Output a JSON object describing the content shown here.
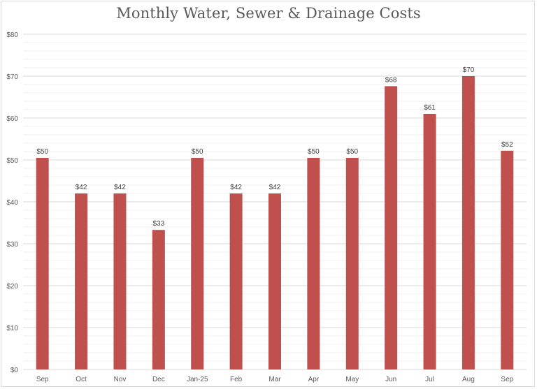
{
  "chart_data": {
    "type": "bar",
    "title": "Monthly Water, Sewer & Drainage Costs",
    "xlabel": "",
    "ylabel": "",
    "categories": [
      "Sep",
      "Oct",
      "Nov",
      "Dec",
      "Jan-25",
      "Feb",
      "Mar",
      "Apr",
      "May",
      "Jun",
      "Jul",
      "Aug",
      "Sep"
    ],
    "values": [
      50.5,
      42,
      42,
      33.3,
      50.5,
      42,
      42,
      50.5,
      50.5,
      67.6,
      61,
      70,
      52.2
    ],
    "data_labels": [
      "$50",
      "$42",
      "$42",
      "$33",
      "$50",
      "$42",
      "$42",
      "$50",
      "$50",
      "$68",
      "$61",
      "$70",
      "$52"
    ],
    "ylim": [
      0,
      80
    ],
    "yticks": [
      0,
      10,
      20,
      30,
      40,
      50,
      60,
      70,
      80
    ],
    "ytick_labels": [
      "$0",
      "$10",
      "$20",
      "$30",
      "$40",
      "$50",
      "$60",
      "$70",
      "$80"
    ],
    "minor_grid_step": 2,
    "grid": true,
    "legend": "none",
    "bar_color": "#c0504d"
  }
}
